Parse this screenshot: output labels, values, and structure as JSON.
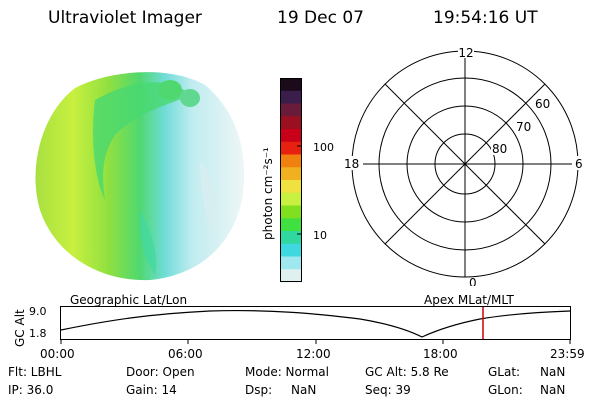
{
  "header": {
    "instrument": "Ultraviolet Imager",
    "date": "19 Dec 07",
    "time": "19:54:16 UT"
  },
  "colorbar": {
    "unit_label": "photon cm⁻²s⁻¹",
    "ticks": [
      "100",
      "10"
    ],
    "colors": [
      "#1a0a1a",
      "#3a1d4a",
      "#6a1b3a",
      "#9a1020",
      "#c80018",
      "#e82010",
      "#f08010",
      "#f0b020",
      "#f0e040",
      "#c8f040",
      "#80e020",
      "#40e040",
      "#30d8a0",
      "#40d8e0",
      "#a0e8f0",
      "#e0f0f0"
    ]
  },
  "polar_plot": {
    "mlt_labels": {
      "top": "12",
      "left": "18",
      "right": "6",
      "bottom": "0"
    },
    "lat_labels": [
      "60",
      "70",
      "80"
    ]
  },
  "timeline": {
    "y_axis_label": "GC Alt",
    "y_max": "9.0",
    "y_min": "1.8",
    "left_title": "Geographic Lat/Lon",
    "right_title": "Apex MLat/MLT",
    "x_ticks": [
      "00:00",
      "06:00",
      "12:00",
      "18:00",
      "23:59"
    ],
    "marker_color": "#d00000"
  },
  "info": {
    "flt": "Flt: LBHL",
    "ip": "IP: 36.0",
    "door": "Door: Open",
    "gain": "Gain: 14",
    "mode": "Mode: Normal",
    "dsp_label": "Dsp:",
    "dsp_value": "NaN",
    "gcalt": "GC Alt: 5.8 Re",
    "seq": "Seq: 39",
    "glat_label": "GLat:",
    "glat_value": "NaN",
    "glon_label": "GLon:",
    "glon_value": "NaN"
  }
}
